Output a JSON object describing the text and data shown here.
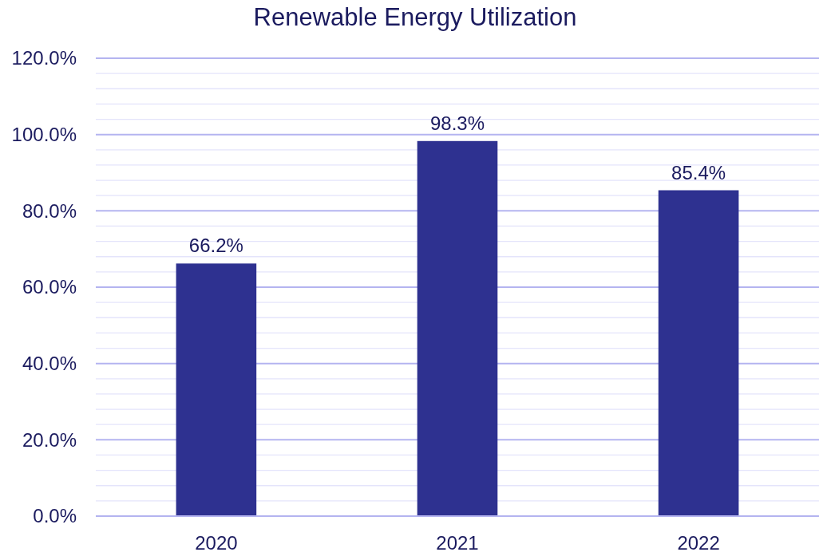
{
  "chart_data": {
    "type": "bar",
    "title": "Renewable Energy Utilization",
    "categories": [
      "2020",
      "2021",
      "2022"
    ],
    "values": [
      66.2,
      98.3,
      85.4
    ],
    "value_labels": [
      "66.2%",
      "98.3%",
      "85.4%"
    ],
    "color": "#2e3190",
    "ylim": [
      0,
      120
    ],
    "yticks": [
      {
        "value": 0,
        "label": "0.0%"
      },
      {
        "value": 4,
        "label": null
      },
      {
        "value": 8,
        "label": null
      },
      {
        "value": 12,
        "label": null
      },
      {
        "value": 16,
        "label": null
      },
      {
        "value": 20,
        "label": "20.0%"
      },
      {
        "value": 24,
        "label": null
      },
      {
        "value": 28,
        "label": null
      },
      {
        "value": 32,
        "label": null
      },
      {
        "value": 36,
        "label": null
      },
      {
        "value": 40,
        "label": "40.0%"
      },
      {
        "value": 44,
        "label": null
      },
      {
        "value": 48,
        "label": null
      },
      {
        "value": 52,
        "label": null
      },
      {
        "value": 56,
        "label": null
      },
      {
        "value": 60,
        "label": "60.0%"
      },
      {
        "value": 64,
        "label": null
      },
      {
        "value": 68,
        "label": null
      },
      {
        "value": 72,
        "label": null
      },
      {
        "value": 76,
        "label": null
      },
      {
        "value": 80,
        "label": "80.0%"
      },
      {
        "value": 84,
        "label": null
      },
      {
        "value": 88,
        "label": null
      },
      {
        "value": 92,
        "label": null
      },
      {
        "value": 96,
        "label": null
      },
      {
        "value": 100,
        "label": "100.0%"
      },
      {
        "value": 104,
        "label": null
      },
      {
        "value": 108,
        "label": null
      },
      {
        "value": 112,
        "label": null
      },
      {
        "value": 116,
        "label": null
      },
      {
        "value": 120,
        "label": "120.0%"
      }
    ],
    "grid": "y"
  }
}
